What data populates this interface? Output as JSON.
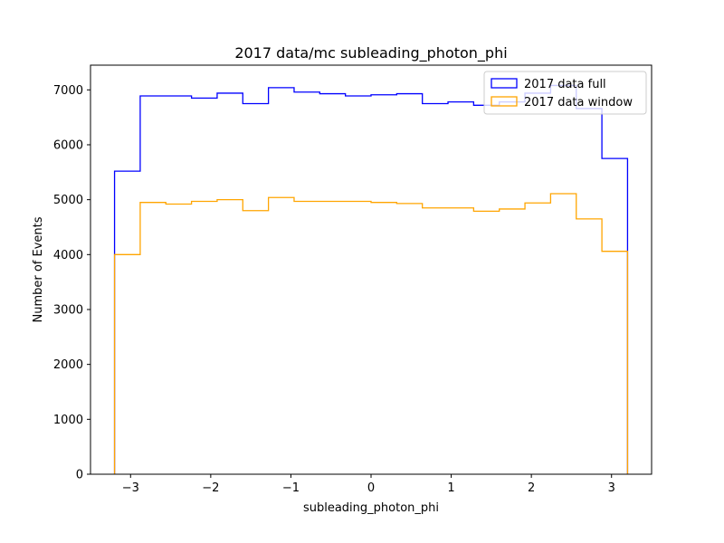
{
  "chart_data": {
    "type": "histogram",
    "title": "2017 data/mc subleading_photon_phi",
    "xlabel": "subleading_photon_phi",
    "ylabel": "Number of Events",
    "xlim": [
      -3.5,
      3.5
    ],
    "ylim": [
      0,
      7450
    ],
    "xticks": [
      -3,
      -2,
      -1,
      0,
      1,
      2,
      3
    ],
    "xtick_labels": [
      "−3",
      "−2",
      "−1",
      "0",
      "1",
      "2",
      "3"
    ],
    "yticks": [
      0,
      1000,
      2000,
      3000,
      4000,
      5000,
      6000,
      7000
    ],
    "ytick_labels": [
      "0",
      "1000",
      "2000",
      "3000",
      "4000",
      "5000",
      "6000",
      "7000"
    ],
    "bin_edges": [
      -3.2,
      -2.88,
      -2.56,
      -2.24,
      -1.92,
      -1.6,
      -1.28,
      -0.96,
      -0.64,
      -0.32,
      0.0,
      0.32,
      0.64,
      0.96,
      1.28,
      1.6,
      1.92,
      2.24,
      2.56,
      2.88,
      3.2
    ],
    "legend_position": "upper right",
    "series": [
      {
        "name": "2017 data full",
        "color": "#0000ff",
        "values": [
          5520,
          6890,
          6890,
          6850,
          6940,
          6750,
          7040,
          6960,
          6930,
          6890,
          6910,
          6930,
          6750,
          6780,
          6720,
          6780,
          6940,
          7080,
          6660,
          5750
        ]
      },
      {
        "name": "2017 data window",
        "color": "#ffa500",
        "values": [
          4000,
          4950,
          4920,
          4970,
          5000,
          4800,
          5040,
          4970,
          4970,
          4970,
          4950,
          4930,
          4850,
          4850,
          4790,
          4830,
          4940,
          5110,
          4650,
          4060
        ]
      }
    ]
  }
}
